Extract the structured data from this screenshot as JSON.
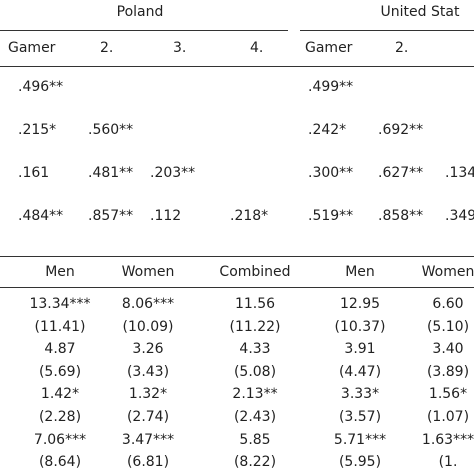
{
  "header": {
    "countries": [
      "Poland",
      "United Stat"
    ],
    "columns": [
      "Gamer",
      "2.",
      "3.",
      "4.",
      "Gamer",
      "2."
    ]
  },
  "correlations": {
    "rows": [
      [
        ".496**",
        null,
        null,
        null,
        ".499**",
        null,
        null
      ],
      [
        ".215*",
        ".560**",
        null,
        null,
        ".242*",
        ".692**",
        null
      ],
      [
        ".161",
        ".481**",
        ".203**",
        null,
        ".300**",
        ".627**",
        ".134"
      ],
      [
        ".484**",
        ".857**",
        ".112",
        ".218*",
        ".519**",
        ".858**",
        ".349"
      ]
    ]
  },
  "means": {
    "columns": [
      "Men",
      "Women",
      "Combined",
      "Men",
      "Women"
    ],
    "rows": [
      [
        "13.34***",
        "8.06***",
        "11.56",
        "12.95",
        "6.60"
      ],
      [
        "(11.41)",
        "(10.09)",
        "(11.22)",
        "(10.37)",
        "(5.10)"
      ],
      [
        "4.87",
        "3.26",
        "4.33",
        "3.91",
        "3.40"
      ],
      [
        "(5.69)",
        "(3.43)",
        "(5.08)",
        "(4.47)",
        "(3.89)"
      ],
      [
        "1.42*",
        "1.32*",
        "2.13**",
        "3.33*",
        "1.56*"
      ],
      [
        "(2.28)",
        "(2.74)",
        "(2.43)",
        "(3.57)",
        "(1.07)"
      ],
      [
        "7.06***",
        "3.47***",
        "5.85",
        "5.71***",
        "1.63***"
      ],
      [
        "(8.64)",
        "(6.81)",
        "(8.22)",
        "(5.95)",
        "(1."
      ]
    ]
  }
}
